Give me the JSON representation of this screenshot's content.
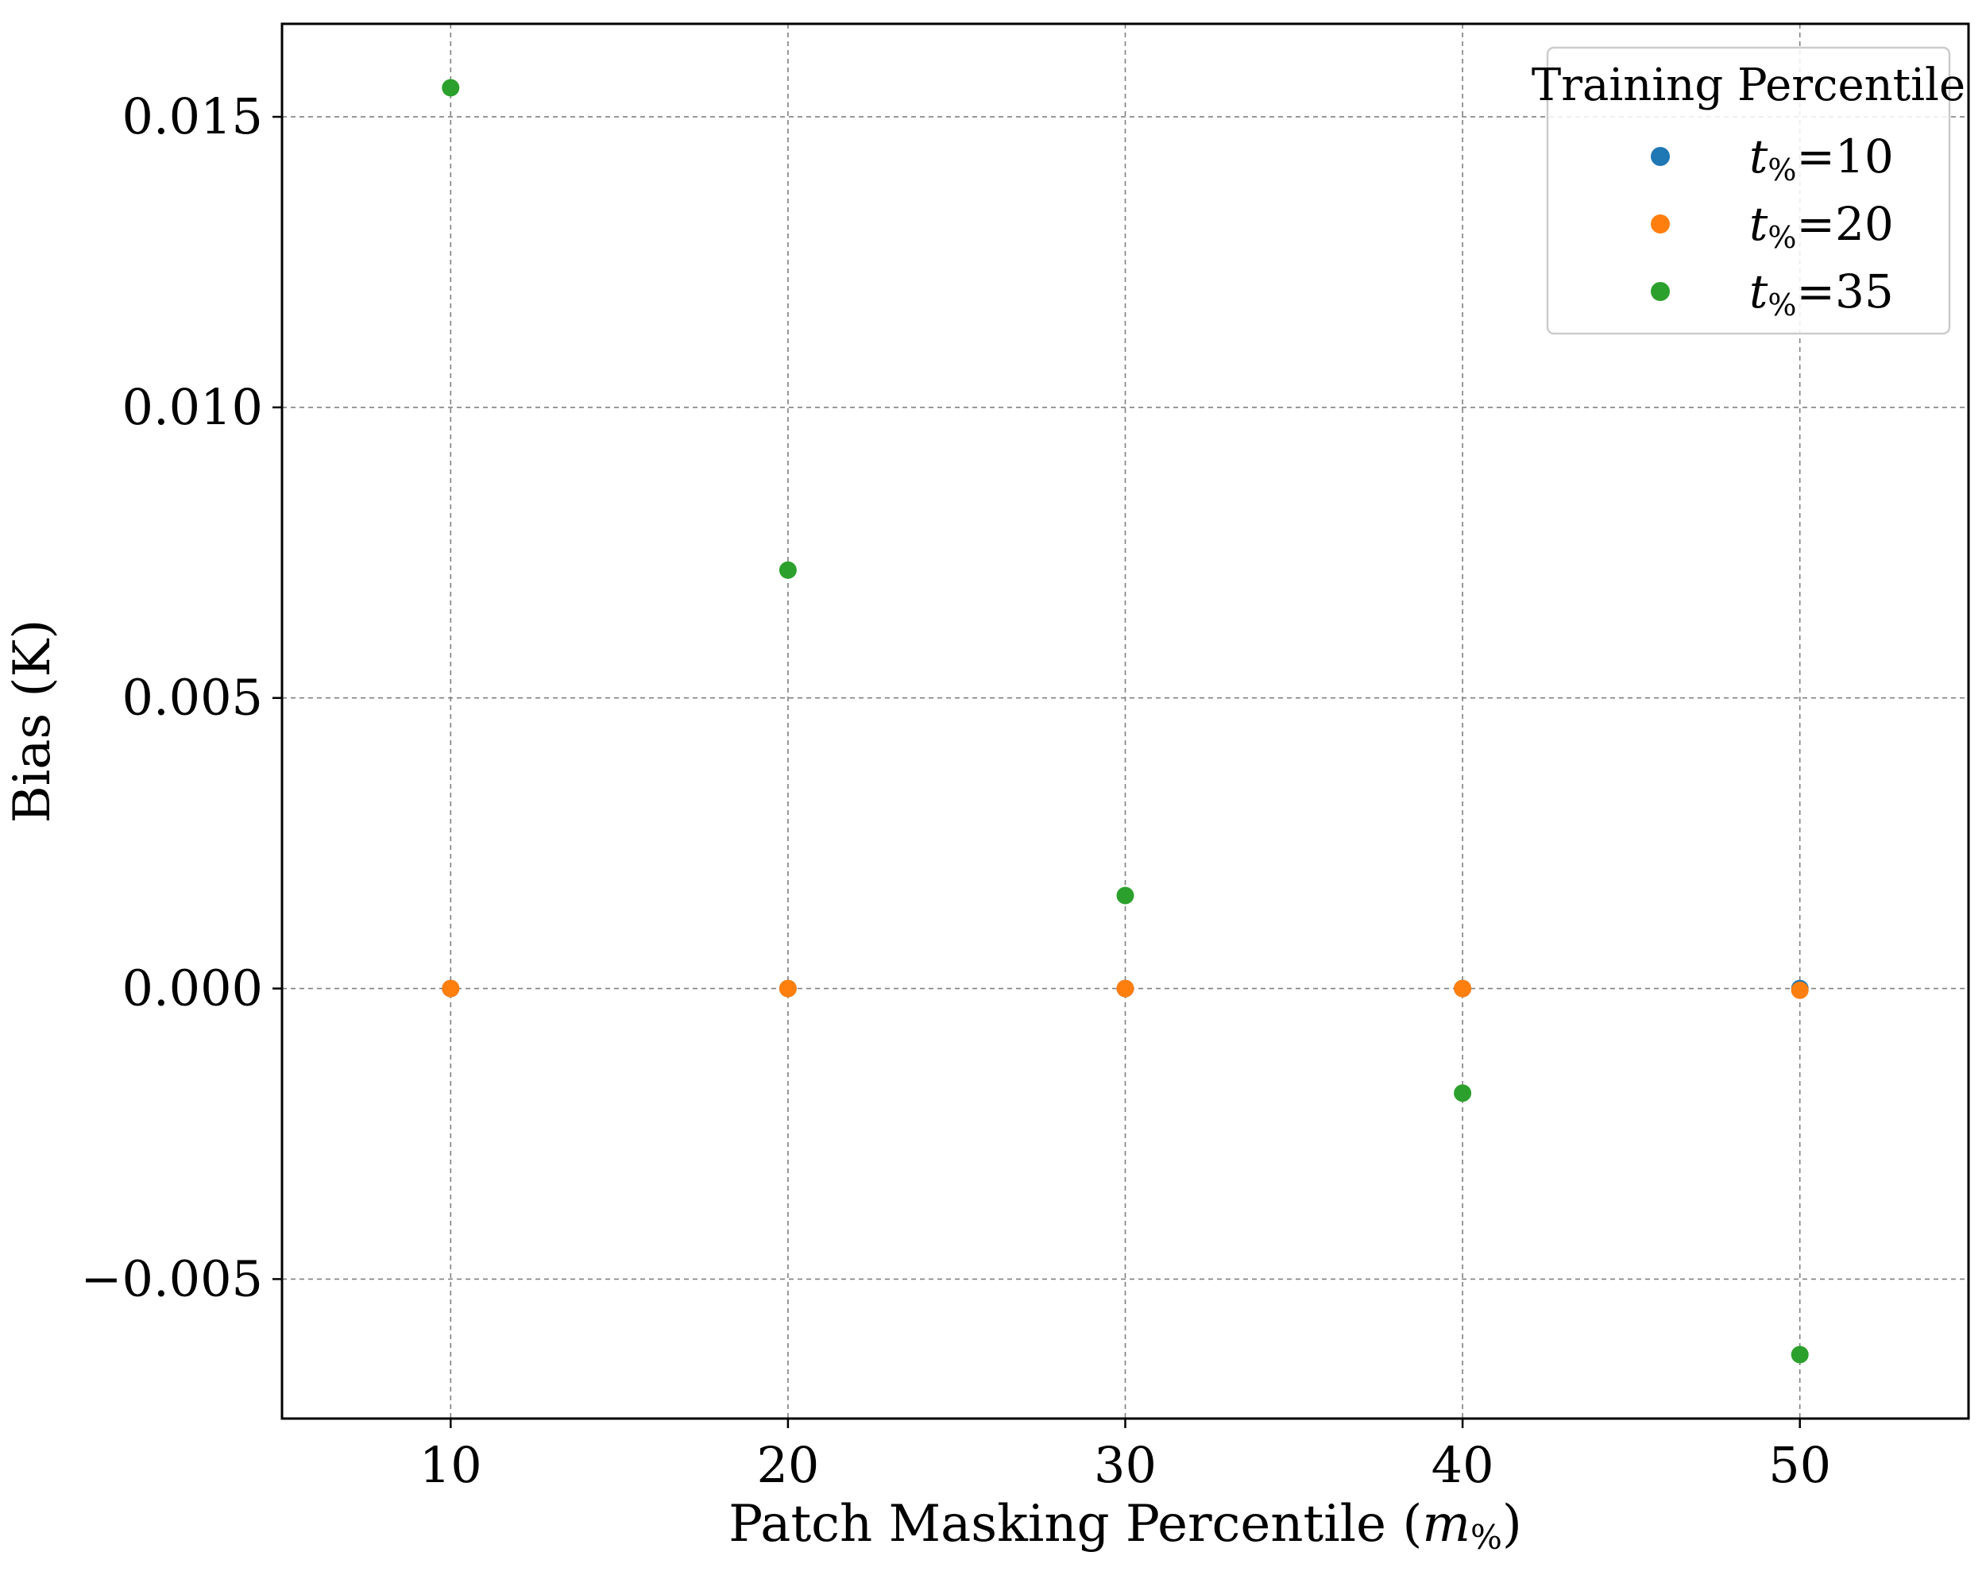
{
  "chart_data": {
    "type": "scatter",
    "title": "",
    "xlabel": "Patch Masking Percentile (m%)",
    "xlabel_parts": {
      "text": "Patch Masking Percentile (",
      "var": "m",
      "sub": "%",
      "close": ")"
    },
    "ylabel": "Bias (K)",
    "xlim": [
      5,
      55
    ],
    "ylim": [
      -0.0074,
      0.0166
    ],
    "x_ticks": [
      10,
      20,
      30,
      40,
      50
    ],
    "x_tick_labels": [
      "10",
      "20",
      "30",
      "40",
      "50"
    ],
    "y_ticks": [
      -0.005,
      0.0,
      0.005,
      0.01,
      0.015
    ],
    "y_tick_labels": [
      "−0.005",
      "0.000",
      "0.005",
      "0.010",
      "0.015"
    ],
    "grid": true,
    "legend": {
      "title": "Training Percentile",
      "placement": "top-right"
    },
    "series": [
      {
        "name": "t%=10",
        "label_var": "t",
        "label_sub": "%",
        "label_value": "=10",
        "color": "#1f77b4",
        "x": [
          10,
          20,
          30,
          40,
          50
        ],
        "y": [
          0.0,
          0.0,
          0.0,
          0.0,
          0.0
        ]
      },
      {
        "name": "t%=20",
        "label_var": "t",
        "label_sub": "%",
        "label_value": "=20",
        "color": "#ff7f0e",
        "x": [
          10,
          20,
          30,
          40,
          50
        ],
        "y": [
          0.0,
          0.0,
          0.0,
          0.0,
          -3e-05
        ]
      },
      {
        "name": "t%=35",
        "label_var": "t",
        "label_sub": "%",
        "label_value": "=35",
        "color": "#2ca02c",
        "x": [
          10,
          20,
          30,
          40,
          50
        ],
        "y": [
          0.0155,
          0.0072,
          0.0016,
          -0.0018,
          -0.0063
        ]
      }
    ]
  }
}
